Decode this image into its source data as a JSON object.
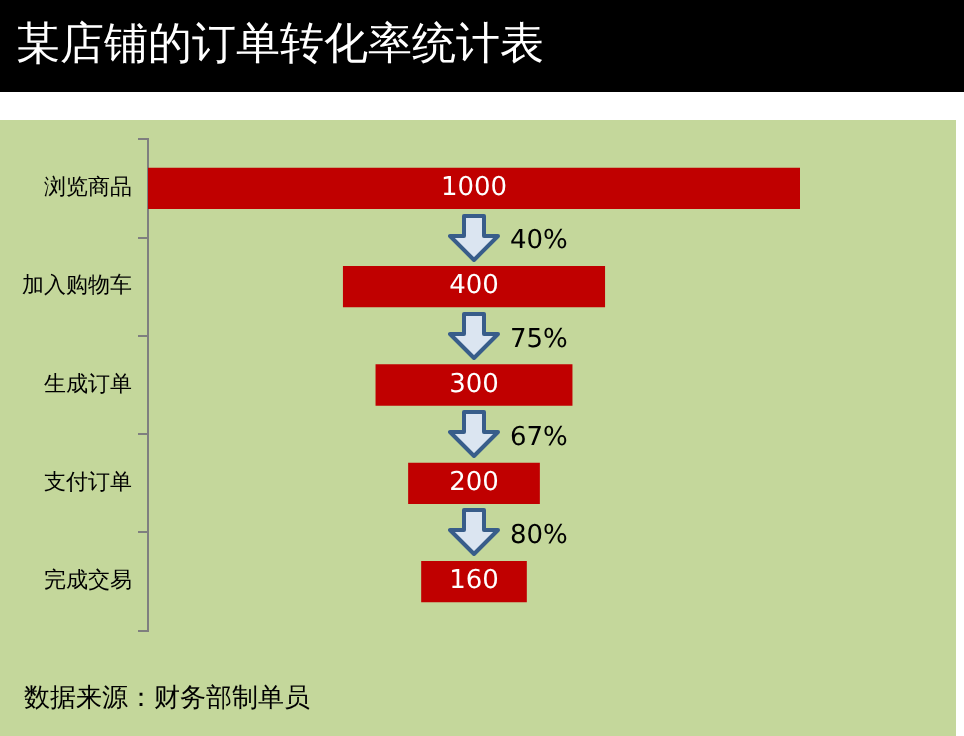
{
  "chart_data": {
    "type": "other",
    "title": "某店铺的订单转化率统计表",
    "categories": [
      "浏览商品",
      "加入购物车",
      "生成订单",
      "支付订单",
      "完成交易"
    ],
    "values": [
      1000,
      400,
      300,
      200,
      160
    ],
    "color": "#c00000",
    "data_labels": true,
    "annotations": [
      "40%",
      "75%",
      "67%",
      "80%",
      "数据来源：财务部制单员"
    ]
  }
}
